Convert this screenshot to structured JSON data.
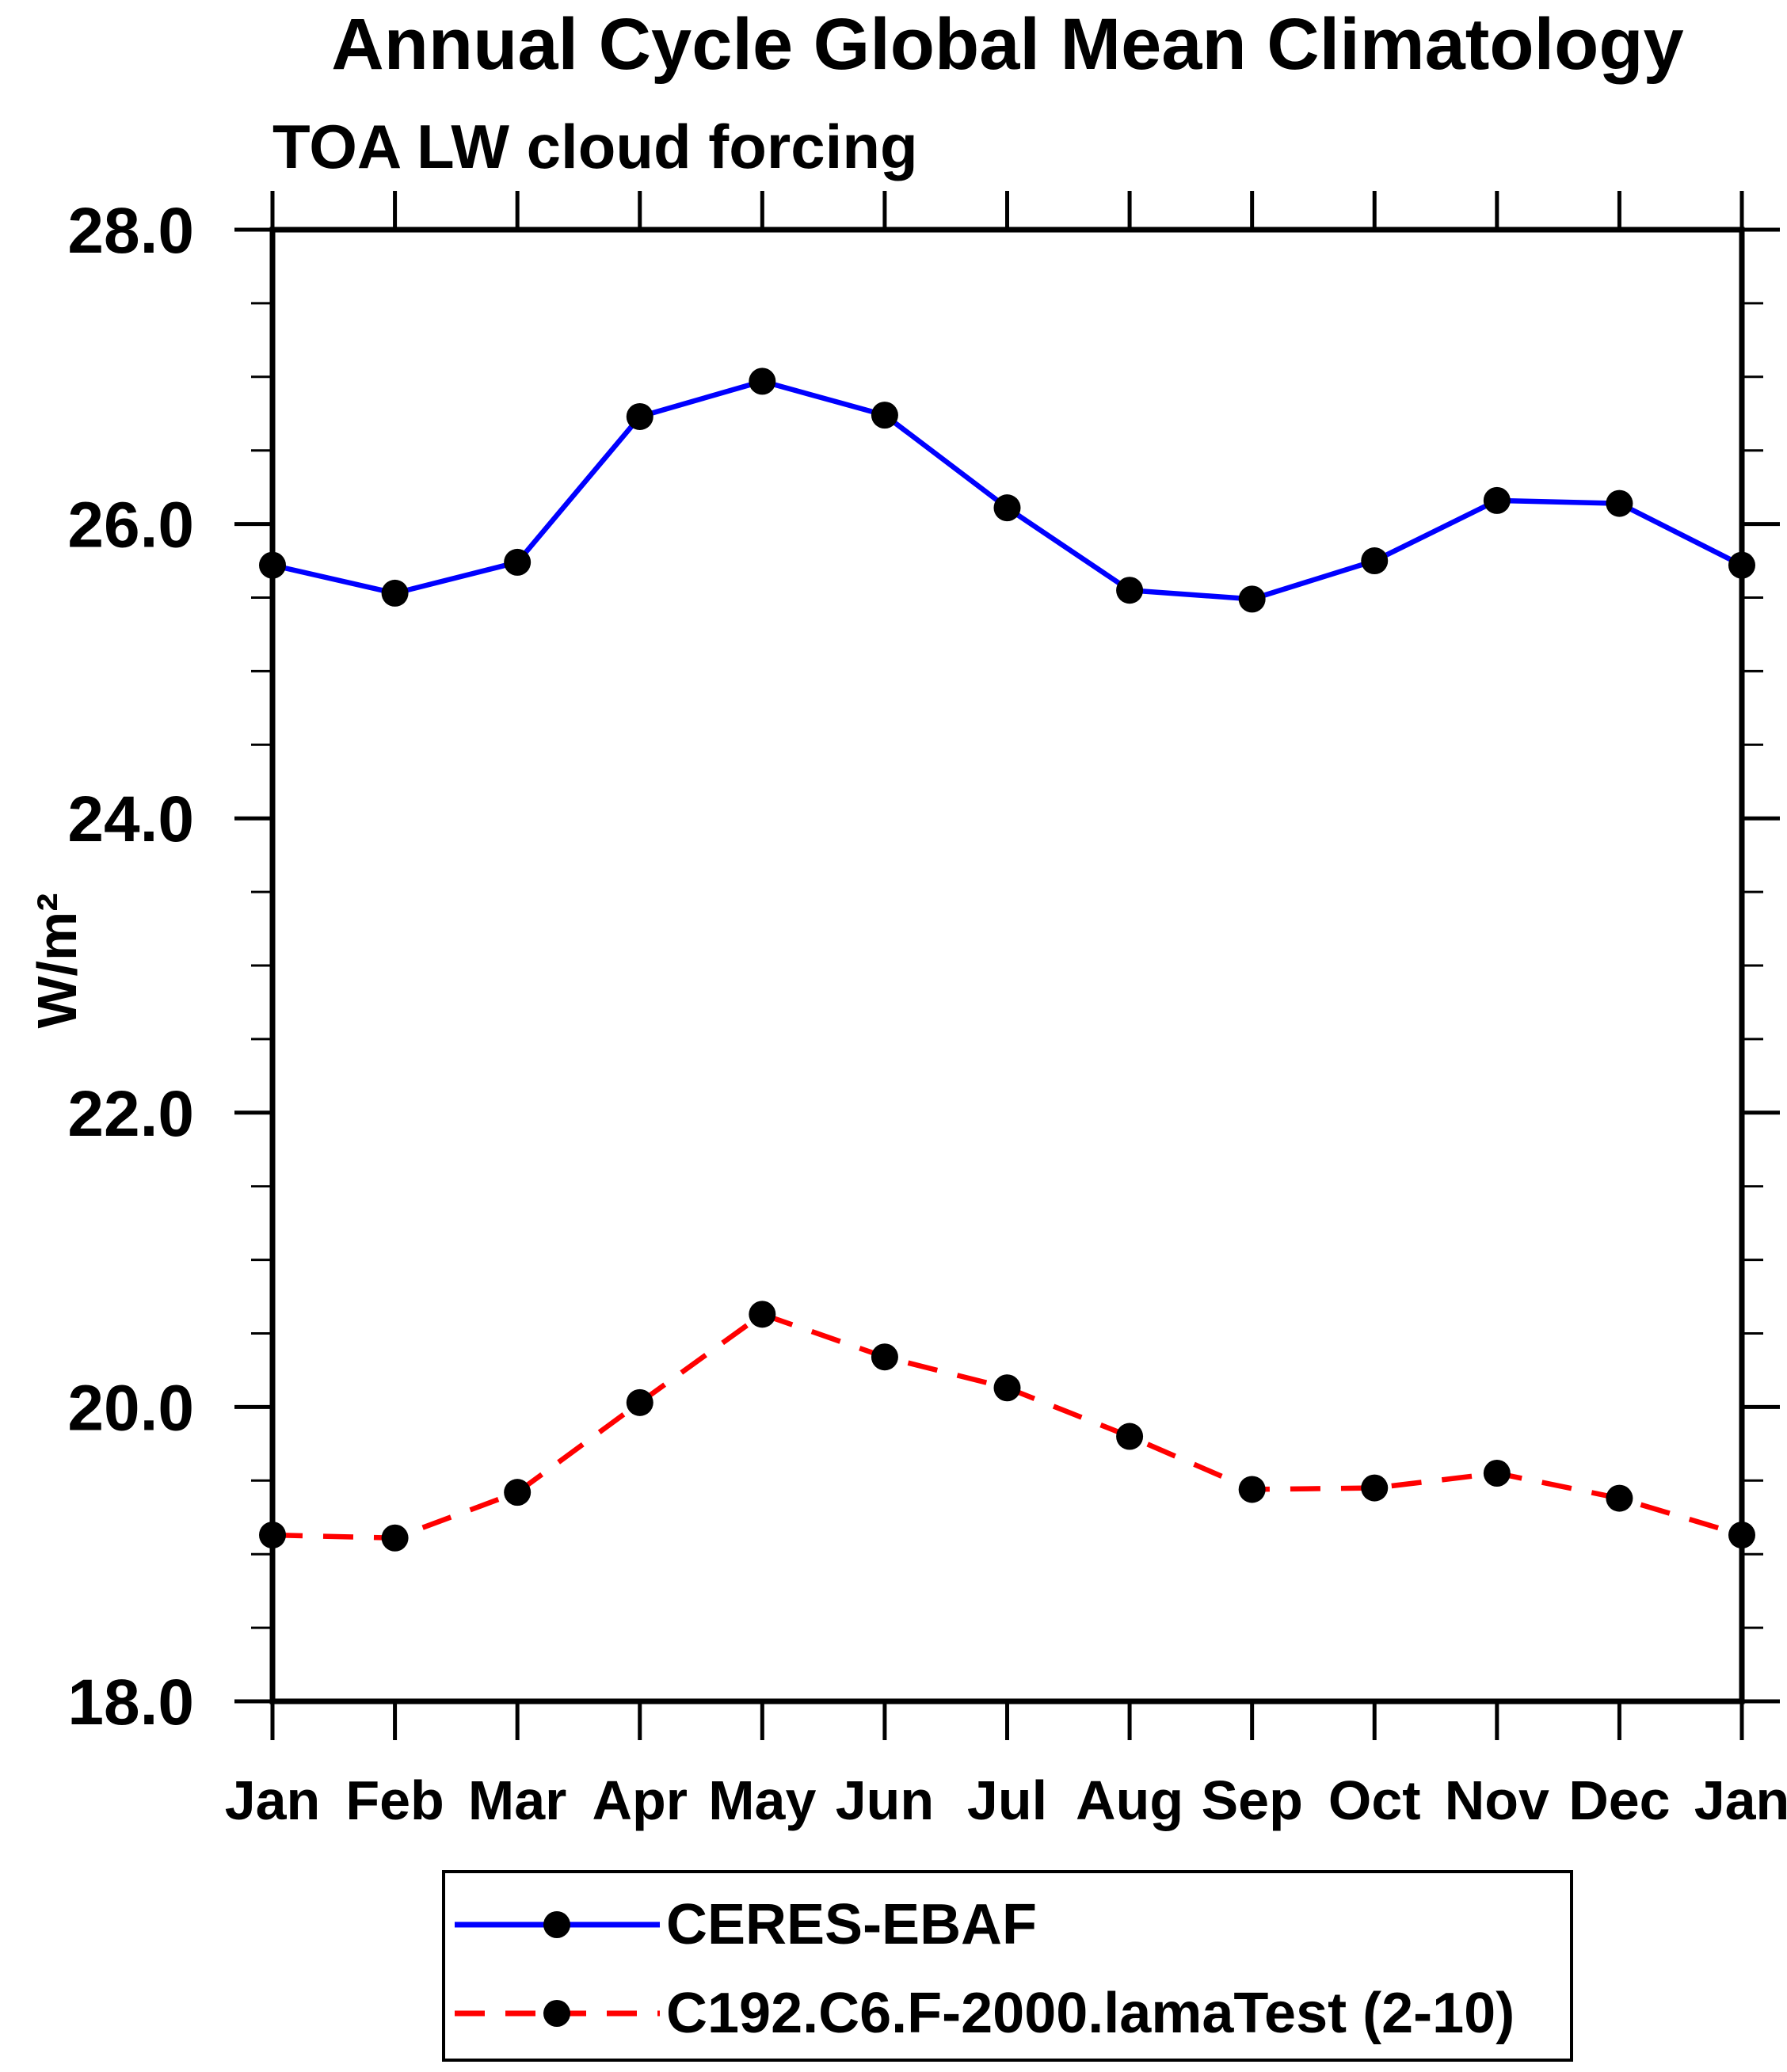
{
  "page": {
    "title": "Annual Cycle Global Mean Climatology",
    "subtitle": "TOA LW cloud forcing",
    "background": "#ffffff"
  },
  "chart_data": {
    "type": "line",
    "title": "Annual Cycle Global Mean Climatology",
    "subtitle": "TOA LW cloud forcing",
    "xlabel": "",
    "ylabel": "W/m²",
    "ylim": [
      18.0,
      28.0
    ],
    "y_major_tick_step": 2.0,
    "y_minor_tick_step": 0.5,
    "y_tick_labels": [
      "18.0",
      "20.0",
      "22.0",
      "24.0",
      "26.0",
      "28.0"
    ],
    "categories": [
      "Jan",
      "Feb",
      "Mar",
      "Apr",
      "May",
      "Jun",
      "Jul",
      "Aug",
      "Sep",
      "Oct",
      "Nov",
      "Dec",
      "Jan"
    ],
    "grid": false,
    "legend_position": "bottom",
    "axis_color": "#000000",
    "series": [
      {
        "name": "CERES-EBAF",
        "color": "#0000ff",
        "line_style": "solid",
        "marker": "filled-circle",
        "marker_color": "#000000",
        "values": [
          25.72,
          25.53,
          25.74,
          26.73,
          26.97,
          26.74,
          26.11,
          25.55,
          25.49,
          25.75,
          26.16,
          26.14,
          25.72
        ]
      },
      {
        "name": "C192.C6.F-2000.lamaTest (2-10)",
        "color": "#ff0000",
        "line_style": "dashed",
        "marker": "filled-circle",
        "marker_color": "#000000",
        "values": [
          19.13,
          19.11,
          19.42,
          20.03,
          20.63,
          20.34,
          20.13,
          19.8,
          19.44,
          19.45,
          19.55,
          19.38,
          19.13
        ]
      }
    ]
  }
}
